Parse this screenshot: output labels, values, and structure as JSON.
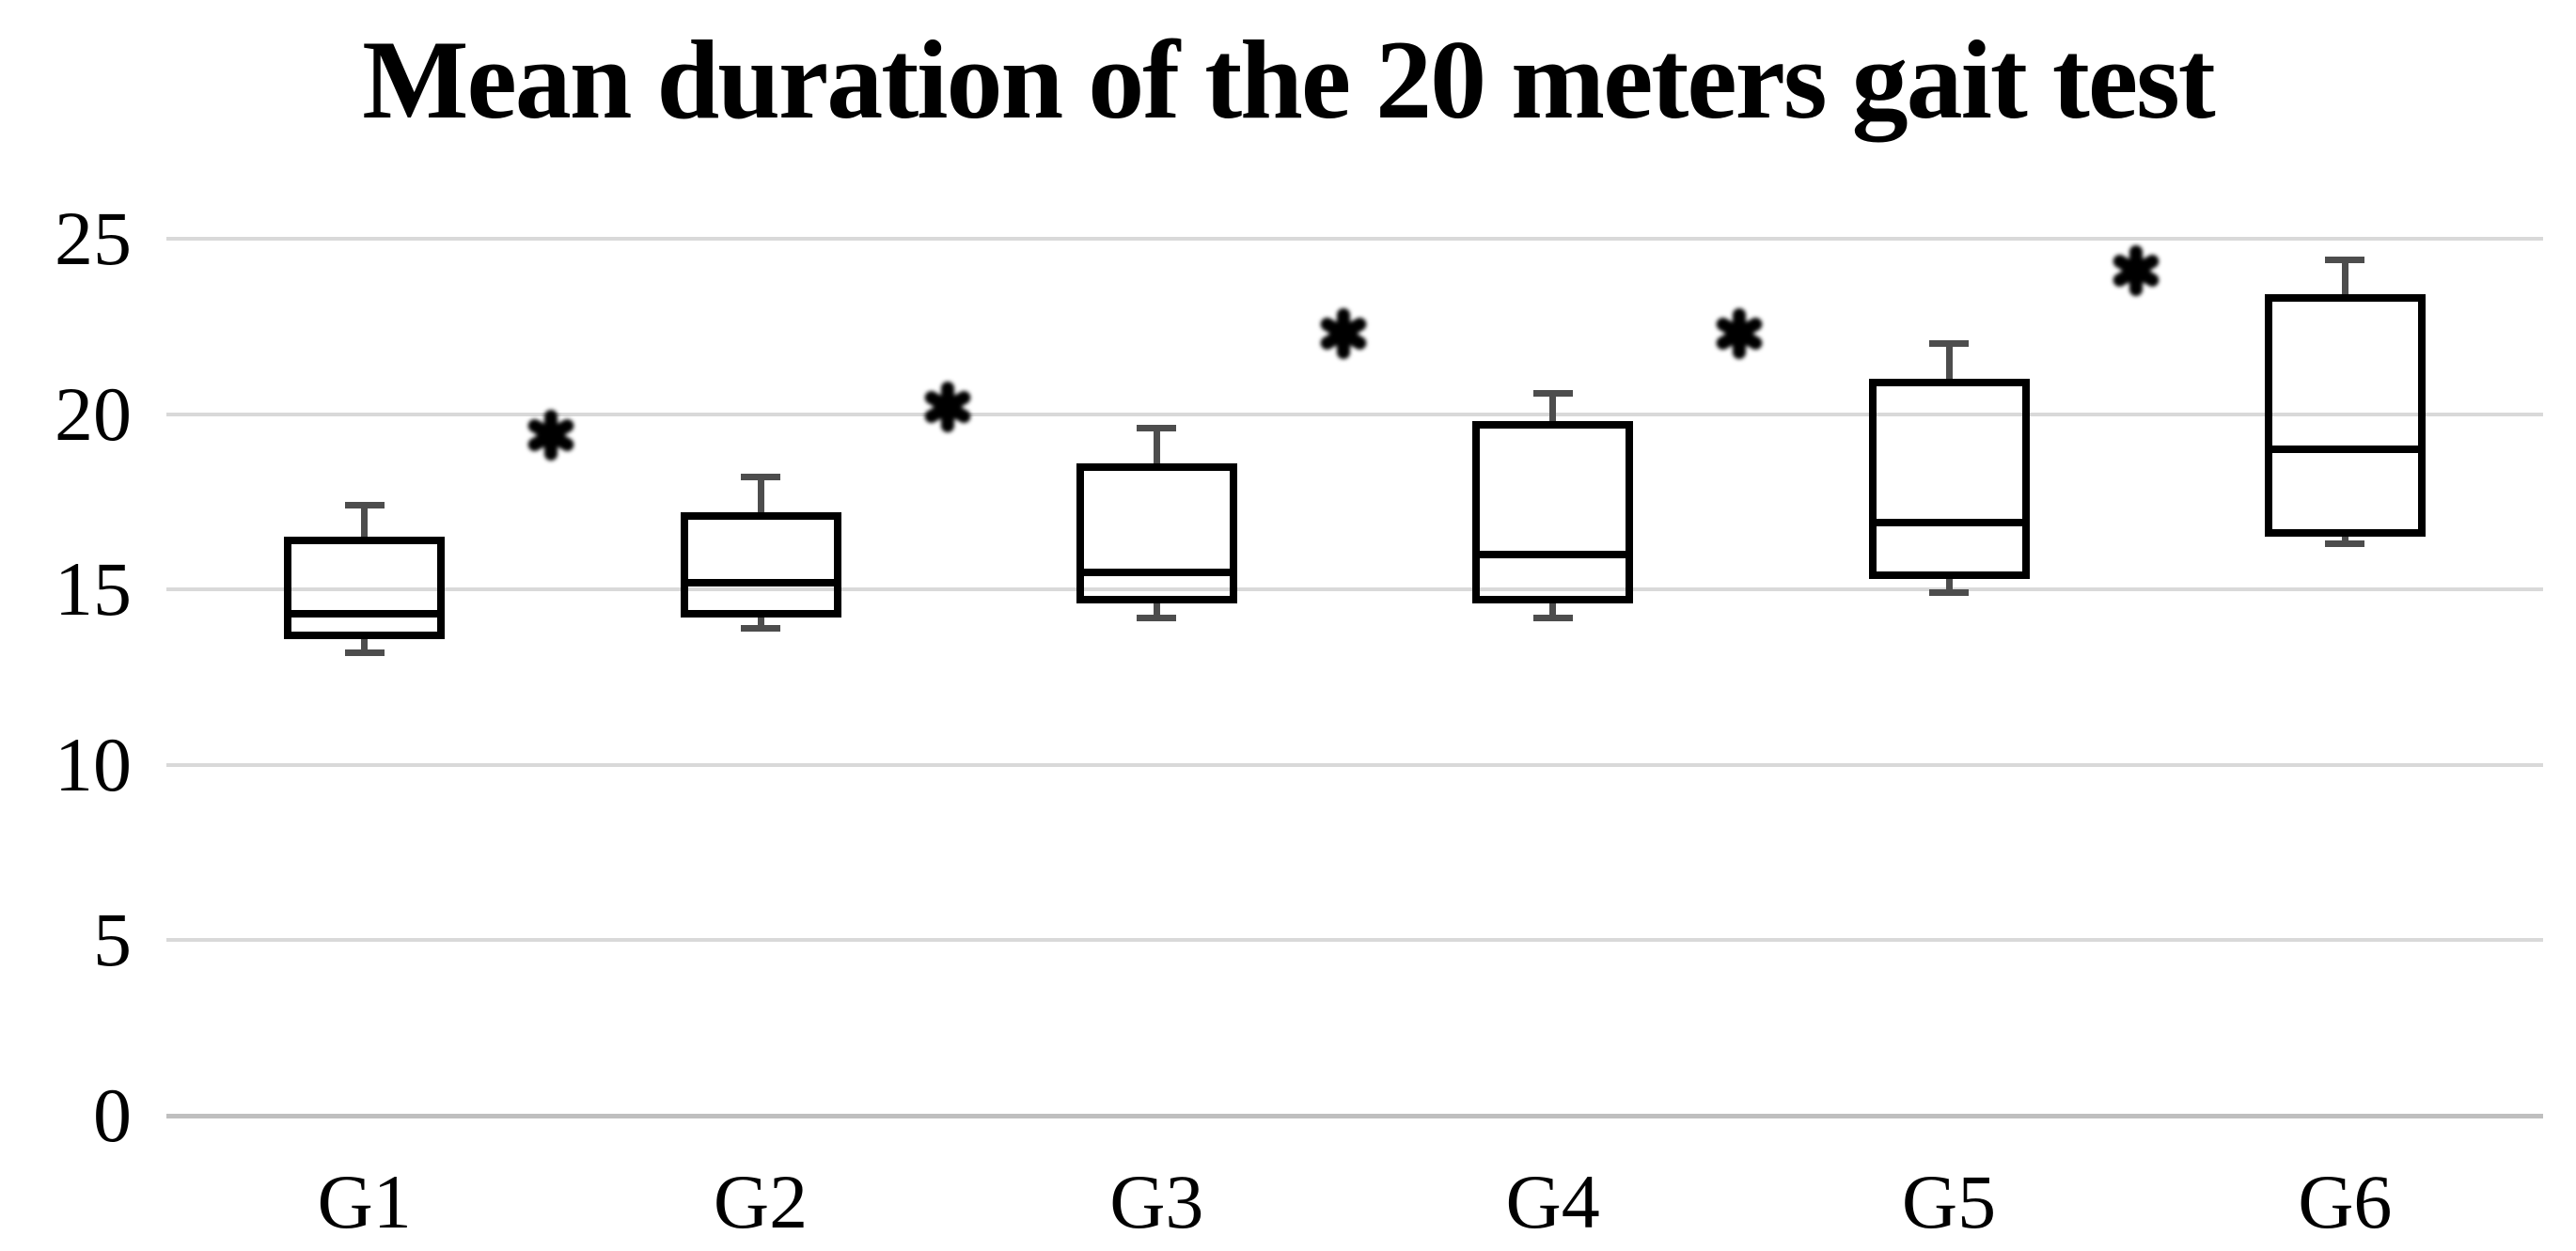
{
  "chart_data": {
    "type": "boxplot",
    "title": "Mean duration of the 20 meters gait test",
    "xlabel": "",
    "ylabel": "",
    "categories": [
      "G1",
      "G2",
      "G3",
      "G4",
      "G5",
      "G6"
    ],
    "y_ticks": [
      25,
      20,
      15,
      10,
      5,
      0
    ],
    "y_tick_labels": [
      "25",
      "20",
      "15",
      "10",
      "5",
      "0"
    ],
    "ylim": [
      0,
      25
    ],
    "grid": true,
    "legend": "none",
    "series": [
      {
        "category": "G1",
        "whisker_low": 13.2,
        "q1": 13.7,
        "median": 14.3,
        "q3": 16.4,
        "whisker_high": 17.4
      },
      {
        "category": "G2",
        "whisker_low": 13.9,
        "q1": 14.3,
        "median": 15.2,
        "q3": 17.1,
        "whisker_high": 18.2
      },
      {
        "category": "G3",
        "whisker_low": 14.2,
        "q1": 14.7,
        "median": 15.5,
        "q3": 18.5,
        "whisker_high": 19.6
      },
      {
        "category": "G4",
        "whisker_low": 14.2,
        "q1": 14.7,
        "median": 16.0,
        "q3": 19.7,
        "whisker_high": 20.6
      },
      {
        "category": "G5",
        "whisker_low": 14.9,
        "q1": 15.4,
        "median": 16.9,
        "q3": 20.9,
        "whisker_high": 22.0
      },
      {
        "category": "G6",
        "whisker_low": 16.3,
        "q1": 16.6,
        "median": 19.0,
        "q3": 23.3,
        "whisker_high": 24.4
      }
    ],
    "significance_markers": [
      {
        "between": [
          "G1",
          "G2"
        ],
        "symbol": "*",
        "value": 19.4
      },
      {
        "between": [
          "G2",
          "G3"
        ],
        "symbol": "*",
        "value": 20.2
      },
      {
        "between": [
          "G3",
          "G4"
        ],
        "symbol": "*",
        "value": 22.3
      },
      {
        "between": [
          "G4",
          "G5"
        ],
        "symbol": "*",
        "value": 22.3
      },
      {
        "between": [
          "G5",
          "G6"
        ],
        "symbol": "*",
        "value": 24.1
      }
    ],
    "colors": {
      "background": "#ffffff",
      "gridline": "#d9d9d9",
      "axis_line": "#bfbfbf",
      "box_outline": "#000000",
      "median_line": "#000000",
      "whisker": "#4d4d4d",
      "text": "#000000",
      "marker": "#000000"
    }
  }
}
